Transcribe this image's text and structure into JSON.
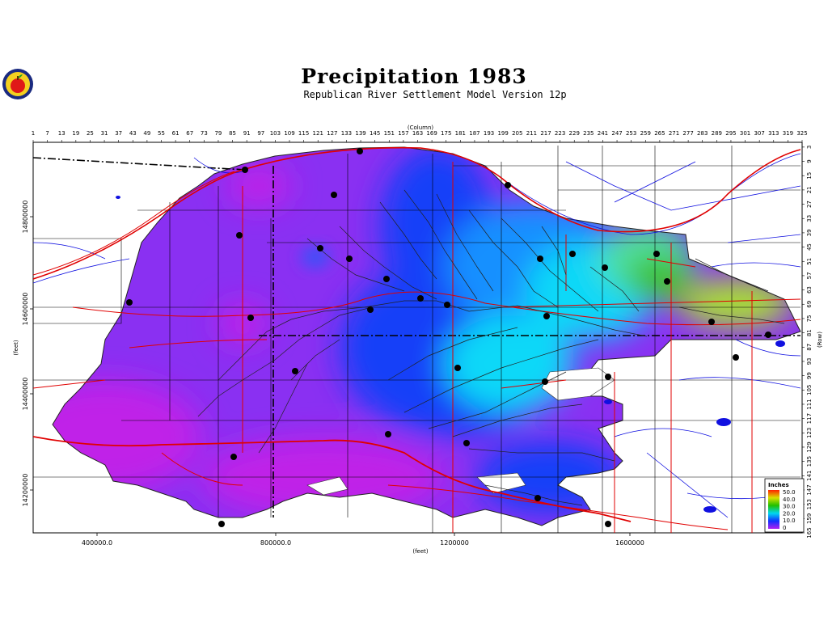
{
  "title": "Precipitation 1983",
  "subtitle": "Republican River Settlement Model Version 12p",
  "axes": {
    "top_label": "(Column)",
    "right_label": "(Row)",
    "bottom_label": "(feet)",
    "left_label": "(feet)",
    "column_ticks": [
      1,
      7,
      13,
      19,
      25,
      31,
      37,
      43,
      49,
      55,
      61,
      67,
      73,
      79,
      85,
      91,
      97,
      103,
      109,
      115,
      121,
      127,
      133,
      139,
      145,
      151,
      157,
      163,
      169,
      175,
      181,
      187,
      193,
      199,
      205,
      211,
      217,
      223,
      229,
      235,
      241,
      247,
      253,
      259,
      265,
      271,
      277,
      283,
      289,
      295,
      301,
      307,
      313,
      319,
      325
    ],
    "row_ticks": [
      3,
      9,
      15,
      21,
      27,
      33,
      39,
      45,
      51,
      57,
      63,
      69,
      75,
      81,
      87,
      93,
      99,
      105,
      111,
      117,
      123,
      129,
      135,
      141,
      147,
      153,
      159,
      165
    ],
    "easting_ticks": [
      "400000.0",
      "800000.0",
      "1200000",
      "1600000"
    ],
    "northing_ticks": [
      "14800000",
      "14600000",
      "14400000",
      "14200000"
    ]
  },
  "legend": {
    "title": "Inches",
    "entries": [
      {
        "label": "50.0",
        "color": "#ff2000"
      },
      {
        "label": "40.0",
        "color": "#d8e000"
      },
      {
        "label": "30.0",
        "color": "#20c000"
      },
      {
        "label": "20.0",
        "color": "#00d8f0"
      },
      {
        "label": "10.0",
        "color": "#1030ff"
      },
      {
        "label": "0",
        "color": "#b020f0"
      }
    ]
  },
  "colors": {
    "low_purple": "#8a30f2",
    "magenta": "#c020e8",
    "blue": "#1840f8",
    "cyan": "#10d8f8",
    "green": "#40c020",
    "yellowgreen": "#a8e030",
    "roads": "#e00000",
    "rivers": "#1010e0",
    "boundary": "#000000"
  },
  "icons": {
    "logo": "apple-seal-logo"
  }
}
